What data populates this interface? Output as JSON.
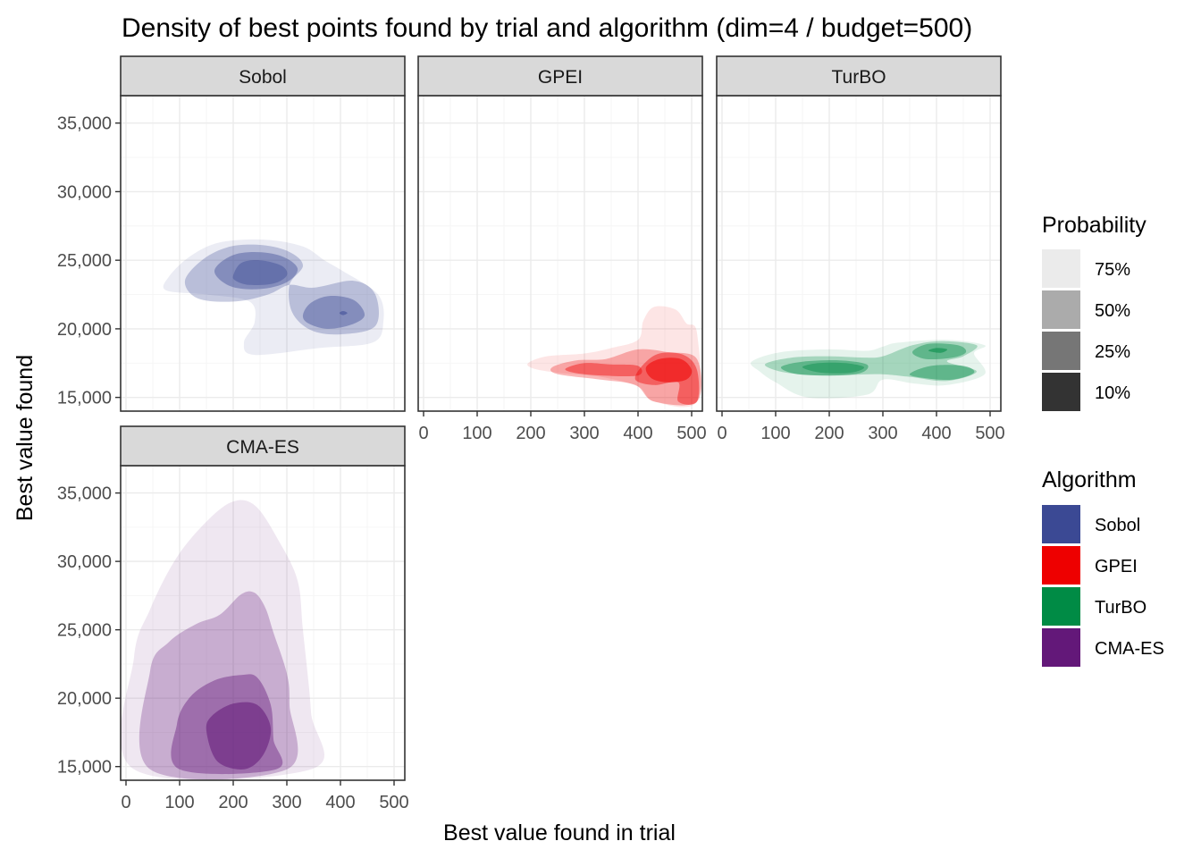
{
  "chart_data": {
    "type": "density-contour",
    "title": "Density of best points found by trial and algorithm (dim=4 / budget=500)",
    "xlabel": "Best value found in trial",
    "ylabel": "Best value found",
    "xlim": [
      -10,
      520
    ],
    "ylim": [
      14000,
      37000
    ],
    "x_ticks": [
      0,
      100,
      200,
      300,
      400,
      500
    ],
    "y_ticks": [
      15000,
      20000,
      25000,
      30000,
      35000
    ],
    "x_tick_labels": [
      "0",
      "100",
      "200",
      "300",
      "400",
      "500"
    ],
    "y_tick_labels": [
      "15,000",
      "20,000",
      "25,000",
      "30,000",
      "35,000"
    ],
    "grid": true,
    "legend_placement": "right",
    "probability_legend": {
      "title": "Probability",
      "levels": [
        {
          "label": "75%",
          "alpha": 0.1,
          "swatch": "#ebebeb"
        },
        {
          "label": "50%",
          "alpha": 0.35,
          "swatch": "#ababab"
        },
        {
          "label": "25%",
          "alpha": 0.6,
          "swatch": "#767676"
        },
        {
          "label": "10%",
          "alpha": 0.9,
          "swatch": "#333333"
        }
      ]
    },
    "algorithm_legend": {
      "title": "Algorithm",
      "items": [
        {
          "label": "Sobol",
          "color": "#3b4994"
        },
        {
          "label": "GPEI",
          "color": "#ee0000"
        },
        {
          "label": "TurBO",
          "color": "#008b45"
        },
        {
          "label": "CMA-ES",
          "color": "#631879"
        }
      ]
    },
    "facets": [
      {
        "name": "Sobol",
        "color": "#3b4994",
        "contours": [
          [
            [
              75,
              22800
            ],
            [
              80,
              23800
            ],
            [
              120,
              25300
            ],
            [
              175,
              26300
            ],
            [
              260,
              26500
            ],
            [
              330,
              26000
            ],
            [
              370,
              25000
            ],
            [
              405,
              24200
            ],
            [
              470,
              22500
            ],
            [
              480,
              20500
            ],
            [
              460,
              19000
            ],
            [
              360,
              18600
            ],
            [
              240,
              18100
            ],
            [
              220,
              19000
            ],
            [
              240,
              20500
            ],
            [
              230,
              22000
            ],
            [
              150,
              22500
            ]
          ],
          [
            [
              110,
              23500
            ],
            [
              145,
              25100
            ],
            [
              195,
              26000
            ],
            [
              255,
              26100
            ],
            [
              305,
              25600
            ],
            [
              330,
              24600
            ],
            [
              305,
              23200
            ],
            [
              310,
              21200
            ],
            [
              345,
              19900
            ],
            [
              400,
              19600
            ],
            [
              465,
              20200
            ],
            [
              465,
              22500
            ],
            [
              425,
              23500
            ],
            [
              350,
              23000
            ],
            [
              305,
              23200
            ],
            [
              265,
              22500
            ],
            [
              205,
              22000
            ],
            [
              135,
              22200
            ]
          ],
          [
            [
              165,
              24200
            ],
            [
              195,
              25300
            ],
            [
              240,
              25600
            ],
            [
              290,
              25300
            ],
            [
              320,
              24400
            ],
            [
              300,
              23400
            ],
            [
              250,
              22900
            ],
            [
              195,
              23100
            ]
          ],
          [
            [
              330,
              21000
            ],
            [
              345,
              21900
            ],
            [
              380,
              22400
            ],
            [
              425,
              22100
            ],
            [
              445,
              21000
            ],
            [
              420,
              20300
            ],
            [
              375,
              20000
            ],
            [
              340,
              20400
            ]
          ],
          [
            [
              200,
              23900
            ],
            [
              215,
              24800
            ],
            [
              250,
              25000
            ],
            [
              290,
              24600
            ],
            [
              300,
              23900
            ],
            [
              275,
              23300
            ],
            [
              230,
              23200
            ],
            [
              205,
              23500
            ]
          ],
          [
            [
              398,
              21150
            ],
            [
              405,
              21300
            ],
            [
              413,
              21150
            ],
            [
              405,
              21000
            ]
          ]
        ]
      },
      {
        "name": "GPEI",
        "color": "#ee0000",
        "contours": [
          [
            [
              195,
              17500
            ],
            [
              230,
              18000
            ],
            [
              300,
              18200
            ],
            [
              350,
              18600
            ],
            [
              400,
              19200
            ],
            [
              410,
              20600
            ],
            [
              430,
              21600
            ],
            [
              470,
              21400
            ],
            [
              490,
              20400
            ],
            [
              510,
              19700
            ],
            [
              510,
              14700
            ],
            [
              430,
              14700
            ],
            [
              400,
              15800
            ],
            [
              330,
              16500
            ],
            [
              250,
              16800
            ],
            [
              205,
              17100
            ]
          ],
          [
            [
              240,
              17200
            ],
            [
              285,
              17700
            ],
            [
              340,
              17800
            ],
            [
              400,
              18500
            ],
            [
              455,
              18300
            ],
            [
              510,
              17800
            ],
            [
              510,
              14700
            ],
            [
              430,
              14700
            ],
            [
              395,
              15900
            ],
            [
              330,
              16300
            ],
            [
              250,
              16700
            ]
          ],
          [
            [
              265,
              17100
            ],
            [
              300,
              17500
            ],
            [
              350,
              17400
            ],
            [
              400,
              17300
            ],
            [
              400,
              16600
            ],
            [
              330,
              16600
            ],
            [
              280,
              16800
            ]
          ],
          [
            [
              395,
              16300
            ],
            [
              410,
              17400
            ],
            [
              440,
              18200
            ],
            [
              485,
              18100
            ],
            [
              510,
              17000
            ],
            [
              510,
              14700
            ],
            [
              475,
              14700
            ],
            [
              475,
              16100
            ],
            [
              430,
              15900
            ]
          ],
          [
            [
              415,
              17200
            ],
            [
              440,
              17800
            ],
            [
              480,
              17800
            ],
            [
              500,
              17000
            ],
            [
              490,
              16300
            ],
            [
              455,
              16100
            ],
            [
              425,
              16400
            ]
          ]
        ]
      },
      {
        "name": "TurBO",
        "color": "#008b45",
        "contours": [
          [
            [
              55,
              17600
            ],
            [
              110,
              18300
            ],
            [
              200,
              18500
            ],
            [
              270,
              18400
            ],
            [
              300,
              18700
            ],
            [
              330,
              19000
            ],
            [
              420,
              19200
            ],
            [
              490,
              18800
            ],
            [
              470,
              18200
            ],
            [
              490,
              16700
            ],
            [
              420,
              15900
            ],
            [
              360,
              16000
            ],
            [
              300,
              16300
            ],
            [
              270,
              15200
            ],
            [
              160,
              15000
            ],
            [
              100,
              16100
            ],
            [
              70,
              16900
            ]
          ],
          [
            [
              80,
              17400
            ],
            [
              130,
              17900
            ],
            [
              200,
              18000
            ],
            [
              265,
              17900
            ],
            [
              300,
              18000
            ],
            [
              355,
              18800
            ],
            [
              410,
              19100
            ],
            [
              475,
              18800
            ],
            [
              450,
              18000
            ],
            [
              420,
              17600
            ],
            [
              475,
              16900
            ],
            [
              420,
              16200
            ],
            [
              350,
              16500
            ],
            [
              290,
              16700
            ],
            [
              200,
              16600
            ],
            [
              120,
              16800
            ]
          ],
          [
            [
              110,
              17200
            ],
            [
              150,
              17600
            ],
            [
              220,
              17700
            ],
            [
              270,
              17400
            ],
            [
              260,
              16800
            ],
            [
              210,
              16600
            ],
            [
              140,
              16700
            ]
          ],
          [
            [
              355,
              18300
            ],
            [
              385,
              18900
            ],
            [
              440,
              18800
            ],
            [
              455,
              18300
            ],
            [
              430,
              17900
            ],
            [
              380,
              17800
            ]
          ],
          [
            [
              350,
              16700
            ],
            [
              390,
              17300
            ],
            [
              450,
              17300
            ],
            [
              470,
              16800
            ],
            [
              430,
              16300
            ],
            [
              380,
              16400
            ]
          ],
          [
            [
              150,
              17200
            ],
            [
              180,
              17500
            ],
            [
              230,
              17500
            ],
            [
              265,
              17200
            ],
            [
              240,
              16800
            ],
            [
              185,
              16800
            ]
          ],
          [
            [
              385,
              18400
            ],
            [
              400,
              18600
            ],
            [
              420,
              18500
            ],
            [
              408,
              18250
            ]
          ]
        ]
      },
      {
        "name": "CMA-ES",
        "color": "#631879",
        "contours": [
          [
            [
              15,
              23000
            ],
            [
              45,
              26500
            ],
            [
              90,
              30000
            ],
            [
              140,
              32500
            ],
            [
              195,
              34300
            ],
            [
              240,
              34100
            ],
            [
              285,
              31500
            ],
            [
              320,
              28600
            ],
            [
              330,
              25000
            ],
            [
              345,
              19000
            ],
            [
              345,
              14800
            ],
            [
              15,
              14800
            ]
          ],
          [
            [
              45,
              14800
            ],
            [
              45,
              22000
            ],
            [
              80,
              24100
            ],
            [
              130,
              25400
            ],
            [
              175,
              26100
            ],
            [
              215,
              27600
            ],
            [
              240,
              27700
            ],
            [
              260,
              26600
            ],
            [
              275,
              24800
            ],
            [
              300,
              21800
            ],
            [
              305,
              19500
            ],
            [
              300,
              14800
            ]
          ],
          [
            [
              100,
              14800
            ],
            [
              95,
              18100
            ],
            [
              120,
              20100
            ],
            [
              165,
              21300
            ],
            [
              215,
              21700
            ],
            [
              245,
              21500
            ],
            [
              270,
              19500
            ],
            [
              275,
              17000
            ],
            [
              280,
              14800
            ]
          ],
          [
            [
              150,
              17600
            ],
            [
              160,
              18700
            ],
            [
              200,
              19600
            ],
            [
              245,
              19500
            ],
            [
              270,
              17800
            ],
            [
              255,
              15800
            ],
            [
              220,
              14800
            ],
            [
              170,
              15400
            ]
          ]
        ]
      }
    ]
  }
}
